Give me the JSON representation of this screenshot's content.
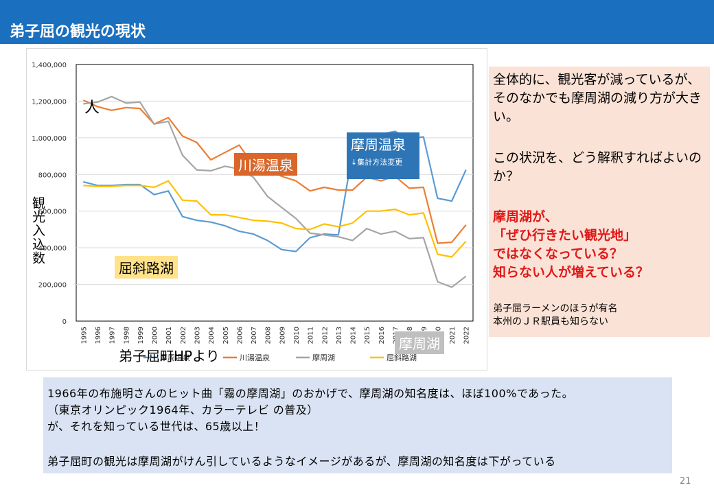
{
  "header": {
    "title": "弟子屈の観光の現状"
  },
  "chart_data": {
    "type": "line",
    "ylabel": "観光入込数",
    "unit_label": "人",
    "ylim": [
      0,
      1400000
    ],
    "y_ticks": [
      "0",
      "200,000",
      "400,000",
      "600,000",
      "800,000",
      "1,000,000",
      "1,200,000",
      "1,400,000"
    ],
    "categories": [
      "1995",
      "1996",
      "1997",
      "1998",
      "1999",
      "2000",
      "2001",
      "2002",
      "2003",
      "2004",
      "2005",
      "2006",
      "2007",
      "2008",
      "2009",
      "2010",
      "2011",
      "2012",
      "2013",
      "2014",
      "2015",
      "2016",
      "2017",
      "2018",
      "2019",
      "2020",
      "2021",
      "2022"
    ],
    "series": [
      {
        "name": "摩周温泉",
        "color": "#5b9bd5",
        "values": [
          760000,
          740000,
          740000,
          745000,
          745000,
          690000,
          710000,
          570000,
          550000,
          540000,
          520000,
          490000,
          475000,
          440000,
          390000,
          380000,
          455000,
          475000,
          470000,
          920000,
          1010000,
          1020000,
          1035000,
          995000,
          1005000,
          670000,
          655000,
          825000
        ]
      },
      {
        "name": "川湯温泉",
        "color": "#ed7d31",
        "values": [
          1205000,
          1170000,
          1150000,
          1165000,
          1160000,
          1075000,
          1110000,
          1010000,
          975000,
          880000,
          920000,
          960000,
          850000,
          830000,
          790000,
          765000,
          710000,
          730000,
          715000,
          715000,
          785000,
          765000,
          790000,
          725000,
          730000,
          425000,
          430000,
          525000
        ]
      },
      {
        "name": "摩周湖",
        "color": "#a5a5a5",
        "values": [
          1185000,
          1195000,
          1225000,
          1190000,
          1195000,
          1075000,
          1090000,
          905000,
          825000,
          820000,
          845000,
          830000,
          785000,
          680000,
          620000,
          560000,
          480000,
          470000,
          460000,
          440000,
          505000,
          475000,
          490000,
          450000,
          455000,
          215000,
          185000,
          245000
        ]
      },
      {
        "name": "屈斜路湖",
        "color": "#ffc000",
        "values": [
          740000,
          735000,
          735000,
          740000,
          740000,
          730000,
          765000,
          660000,
          655000,
          580000,
          580000,
          565000,
          550000,
          545000,
          535000,
          505000,
          500000,
          530000,
          515000,
          535000,
          600000,
          600000,
          610000,
          580000,
          590000,
          365000,
          350000,
          435000
        ]
      }
    ],
    "annotations": {
      "kawayu": "川湯温泉",
      "mashu_onsen": "摩周温泉",
      "mashu_onsen_note": "↓集計方法変更",
      "kussharo": "屈斜路湖",
      "mashuko": "摩周湖",
      "source": "弟子屈町HPより"
    }
  },
  "callout": {
    "text1": "全体的に、観光客が減っているが、そのなかでも摩周湖の減り方が大きい。",
    "text2": "この状況を、どう解釈すればよいのか？",
    "text3_lines": [
      "摩周湖が、",
      "「ぜひ行きたい観光地」",
      "ではなくなっている？",
      "知らない人が増えている？"
    ],
    "text4_lines": [
      "弟子屈ラーメンのほうが有名",
      "本州のＪＲ駅員も知らない"
    ],
    "text_color": "#e01818"
  },
  "note": {
    "line1": "1966年の布施明さんのヒット曲「霧の摩周湖」のおかげで、摩周湖の知名度は、ほぼ100%であった。",
    "line2": "（東京オリンピック1964年、カラーテレビ の普及）",
    "line3": "が、それを知っている世代は、65歳以上！",
    "line4": "弟子屈町の観光は摩周湖がけん引しているようなイメージがあるが、摩周湖の知名度は下がっている"
  },
  "page_number": "21"
}
